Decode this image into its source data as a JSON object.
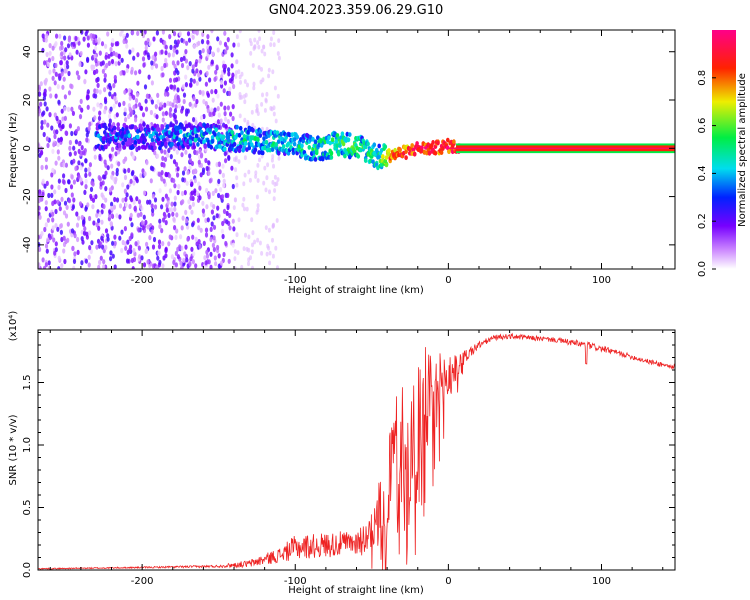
{
  "figure_title": "GN04.2023.359.06.29.G10",
  "colors": {
    "snr_line": "#ee2222",
    "axis": "#000000"
  },
  "chart_data": [
    {
      "type": "heatmap",
      "title": "",
      "xlabel": "Height of straight line (km)",
      "ylabel": "Frequency (Hz)",
      "xlim": [
        -268,
        148
      ],
      "ylim": [
        -50,
        49
      ],
      "xticks": [
        -200,
        -100,
        0,
        100
      ],
      "xtick_labels": [
        "-200",
        "-100",
        "0",
        "100"
      ],
      "yticks": [
        -40,
        -20,
        0,
        20,
        40
      ],
      "ytick_labels": [
        "-40",
        "-20",
        "0",
        "20",
        "40"
      ],
      "colorbar": {
        "label": "Normalized spectral amplitude",
        "range": [
          0,
          1
        ],
        "ticks": [
          0,
          0.2,
          0.4,
          0.6,
          0.8
        ],
        "tick_labels": [
          "0.0",
          "0.2",
          "0.4",
          "0.6",
          "0.8"
        ],
        "colormap": "rainbow (white-purple-blue-cyan-green-yellow-red-pink)"
      },
      "ridge": {
        "x": [
          -210,
          -180,
          -160,
          -140,
          -120,
          -100,
          -85,
          -70,
          -55,
          -45,
          -40,
          -30,
          -20,
          -10,
          0,
          10,
          50,
          100,
          148
        ],
        "y": [
          5,
          5,
          5,
          4,
          3,
          1,
          0,
          2,
          0,
          -4,
          -3,
          -2,
          0,
          0,
          1,
          0,
          0,
          0,
          0
        ],
        "amplitude": [
          0.3,
          0.35,
          0.4,
          0.45,
          0.45,
          0.45,
          0.5,
          0.55,
          0.5,
          0.5,
          0.8,
          0.85,
          0.9,
          0.9,
          0.9,
          0.95,
          0.95,
          0.95,
          0.95
        ]
      },
      "noise_region": {
        "x_range": [
          -268,
          -140
        ],
        "y_range": [
          -50,
          49
        ]
      }
    },
    {
      "type": "line",
      "title": "",
      "xlabel": "Height of straight line (km)",
      "ylabel": "SNR (10 * v/v)",
      "y_multiplier": "(x10⁴)",
      "xlim": [
        -268,
        148
      ],
      "ylim": [
        0,
        1.92
      ],
      "xticks": [
        -200,
        -100,
        0,
        100
      ],
      "xtick_labels": [
        "-200",
        "-100",
        "0",
        "100"
      ],
      "yticks": [
        0,
        0.5,
        1.0,
        1.5
      ],
      "ytick_labels": [
        "0.0",
        "0.5",
        "1.0",
        "1.5"
      ],
      "series": [
        {
          "x": [
            -268,
            -200,
            -150,
            -130,
            -110,
            -100,
            -80,
            -60,
            -50,
            -45,
            -40,
            -35,
            -30,
            -25,
            -20,
            -15,
            -10,
            -5,
            0,
            5,
            10,
            20,
            30,
            40,
            50,
            70,
            90,
            110,
            130,
            148
          ],
          "y": [
            0.01,
            0.02,
            0.03,
            0.05,
            0.12,
            0.18,
            0.2,
            0.22,
            0.3,
            0.45,
            0.7,
            0.9,
            1.1,
            0.95,
            1.2,
            1.35,
            1.3,
            1.45,
            1.55,
            1.6,
            1.7,
            1.8,
            1.86,
            1.87,
            1.86,
            1.84,
            1.8,
            1.74,
            1.67,
            1.62
          ],
          "noise": [
            0.004,
            0.006,
            0.01,
            0.03,
            0.06,
            0.1,
            0.1,
            0.1,
            0.15,
            0.3,
            0.45,
            0.5,
            0.55,
            0.55,
            0.5,
            0.45,
            0.4,
            0.3,
            0.2,
            0.12,
            0.06,
            0.03,
            0.02,
            0.02,
            0.02,
            0.02,
            0.03,
            0.02,
            0.02,
            0.02
          ]
        }
      ]
    }
  ]
}
